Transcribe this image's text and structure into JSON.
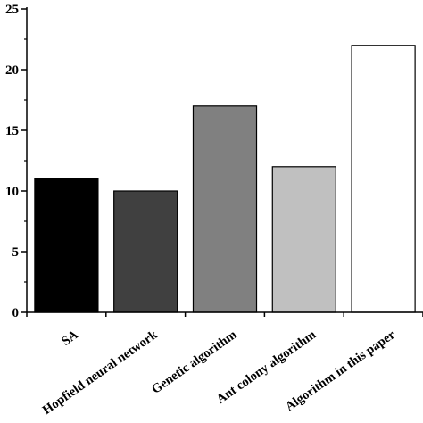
{
  "chart_data": {
    "type": "bar",
    "title": "",
    "xlabel": "",
    "ylabel": "",
    "categories": [
      "SA",
      "Hopfield neural network",
      "Genetic algorithm",
      "Ant colony algorithm",
      "Algorithm in this paper"
    ],
    "values": [
      11,
      10,
      17,
      12,
      22
    ],
    "bar_colors": [
      "#000000",
      "#404040",
      "#808080",
      "#c0c0c0",
      "#ffffff"
    ],
    "ylim": [
      0,
      25
    ],
    "yticks": [
      0,
      5,
      10,
      15,
      20,
      25
    ],
    "grid": false,
    "legend": "none"
  }
}
